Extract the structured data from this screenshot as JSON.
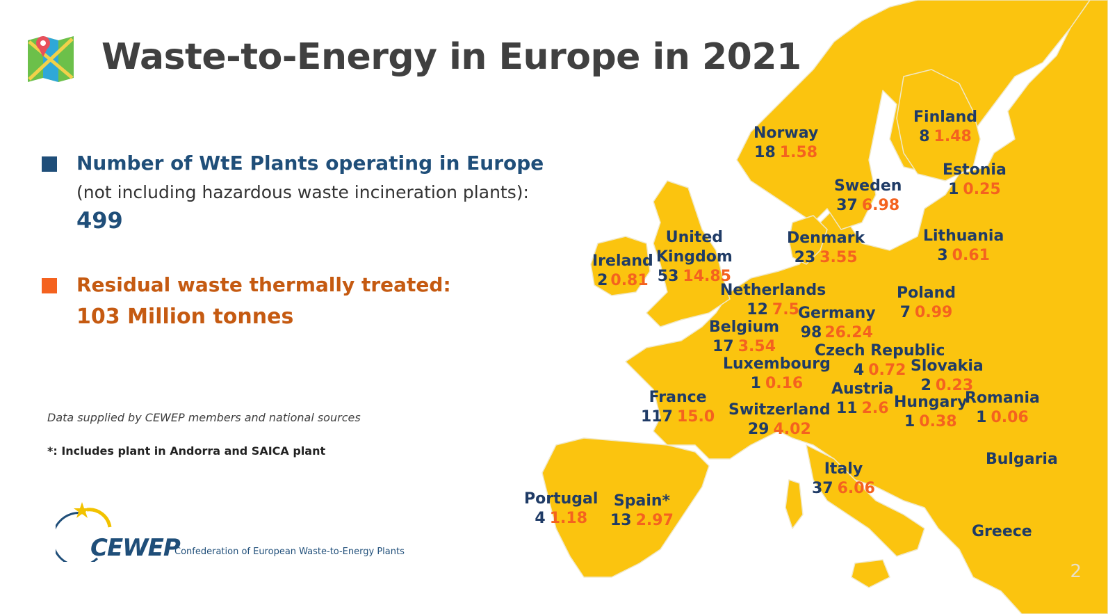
{
  "title": "Waste-to-Energy in Europe in 2021",
  "plants": {
    "heading": "Number of WtE Plants operating in Europe",
    "subheading": "(not including hazardous waste incineration plants):",
    "value": "499"
  },
  "residual": {
    "heading": "Residual waste thermally treated:",
    "value": "103 Million tonnes"
  },
  "notes": {
    "source": "Data supplied by CEWEP members and national sources",
    "footnote": "*: Includes plant in Andorra and SAICA plant"
  },
  "logo": {
    "wordmark": "CEWEP",
    "tagline": "Confederation of European Waste-to-Energy Plants"
  },
  "page_number": "2",
  "colors": {
    "land": "#fbc40f",
    "plants": "#1f3b66",
    "tonnes": "#f4621f"
  },
  "countries": [
    {
      "name": "Norway",
      "plants": "18",
      "tonnes": "1.58"
    },
    {
      "name": "Finland",
      "plants": "8",
      "tonnes": "1.48"
    },
    {
      "name": "Estonia",
      "plants": "1",
      "tonnes": "0.25"
    },
    {
      "name": "Sweden",
      "plants": "37",
      "tonnes": "6.98"
    },
    {
      "name": "Lithuania",
      "plants": "3",
      "tonnes": "0.61"
    },
    {
      "name": "Denmark",
      "plants": "23",
      "tonnes": "3.55"
    },
    {
      "name": "United Kingdom",
      "line1": "United",
      "line2": "Kingdom",
      "plants": "53",
      "tonnes": "14.85"
    },
    {
      "name": "Ireland",
      "plants": "2",
      "tonnes": "0.81"
    },
    {
      "name": "Netherlands",
      "plants": "12",
      "tonnes": "7.5"
    },
    {
      "name": "Germany",
      "plants": "98",
      "tonnes": "26.24"
    },
    {
      "name": "Poland",
      "plants": "7",
      "tonnes": "0.99"
    },
    {
      "name": "Belgium",
      "plants": "17",
      "tonnes": "3.54"
    },
    {
      "name": "Czech Republic",
      "plants": "4",
      "tonnes": "0.72"
    },
    {
      "name": "Luxembourg",
      "plants": "1",
      "tonnes": "0.16"
    },
    {
      "name": "Slovakia",
      "plants": "2",
      "tonnes": "0.23"
    },
    {
      "name": "Austria",
      "plants": "11",
      "tonnes": "2.6"
    },
    {
      "name": "France",
      "plants": "117",
      "tonnes": "15.0"
    },
    {
      "name": "Switzerland",
      "plants": "29",
      "tonnes": "4.02"
    },
    {
      "name": "Hungary",
      "plants": "1",
      "tonnes": "0.38"
    },
    {
      "name": "Romania",
      "plants": "1",
      "tonnes": "0.06"
    },
    {
      "name": "Bulgaria"
    },
    {
      "name": "Italy",
      "plants": "37",
      "tonnes": "6.06"
    },
    {
      "name": "Portugal",
      "plants": "4",
      "tonnes": "1.18"
    },
    {
      "name": "Spain*",
      "plants": "13",
      "tonnes": "2.97"
    },
    {
      "name": "Greece"
    }
  ]
}
